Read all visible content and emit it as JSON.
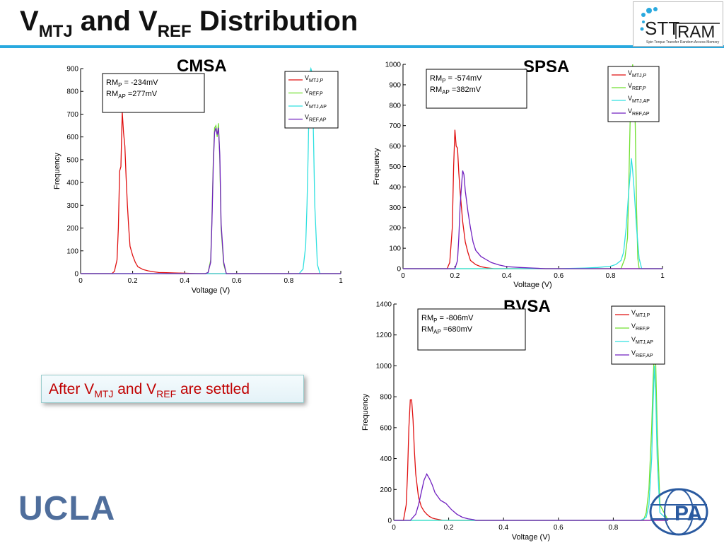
{
  "slide": {
    "title_v": "V",
    "title_mtj": "MTJ",
    "title_and": " and V",
    "title_ref": "REF",
    "title_tail": " Distribution",
    "callout_pre": "After V",
    "callout_mtj": "MTJ",
    "callout_mid": " and V",
    "callout_ref": "REF",
    "callout_post": " are settled",
    "ucla_logo": "UCLA",
    "sttram_logo_part1": "STT",
    "sttram_logo_part2": "RAM",
    "sttram_logo_tagline": "Spin Torque Transfer Random Access Memory",
    "pa_logo": "PA"
  },
  "colors": {
    "title_rule": "#29a9df",
    "label_blue": "#1010d0",
    "label_red": "#e00000",
    "callout_text": "#c00000",
    "ucla_blue": "#4f6e9c",
    "series": [
      "#e01010",
      "#70e030",
      "#30e0e0",
      "#7020c0"
    ]
  },
  "chart_data": [
    {
      "id": "cmsa",
      "type": "line",
      "label": "CMSA",
      "xlabel": "Voltage (V)",
      "ylabel": "Frequency",
      "xlim": [
        0,
        1
      ],
      "ylim": [
        0,
        900
      ],
      "xticks": [
        0,
        0.2,
        0.4,
        0.6,
        0.8,
        1
      ],
      "xtick_labels": [
        "0",
        "0.2",
        "0.4",
        "0.6",
        "0.8",
        "1"
      ],
      "yticks": [
        0,
        100,
        200,
        300,
        400,
        500,
        600,
        700,
        800,
        900
      ],
      "ytick_labels": [
        "0",
        "100",
        "200",
        "300",
        "400",
        "500",
        "600",
        "700",
        "800",
        "900"
      ],
      "annotation": [
        {
          "base": "RM",
          "sub": "P",
          "value": " = -234mV"
        },
        {
          "base": "RM",
          "sub": "AP",
          "value": " =277mV"
        }
      ],
      "legend": [
        {
          "base": "V",
          "sub": "MTJ,P"
        },
        {
          "base": "V",
          "sub": "REF,P"
        },
        {
          "base": "V",
          "sub": "MTJ,AP"
        },
        {
          "base": "V",
          "sub": "REF,AP"
        }
      ],
      "series": [
        {
          "x": [
            0,
            0.12,
            0.13,
            0.14,
            0.145,
            0.15,
            0.155,
            0.16,
            0.165,
            0.17,
            0.175,
            0.18,
            0.185,
            0.19,
            0.2,
            0.21,
            0.22,
            0.24,
            0.26,
            0.28,
            0.3,
            0.33,
            0.36,
            0.4,
            0.45,
            1
          ],
          "y": [
            0,
            0,
            10,
            60,
            200,
            450,
            470,
            710,
            620,
            560,
            420,
            300,
            200,
            120,
            80,
            50,
            30,
            18,
            12,
            8,
            5,
            4,
            3,
            2,
            0,
            0
          ]
        },
        {
          "x": [
            0,
            0.48,
            0.49,
            0.5,
            0.505,
            0.51,
            0.515,
            0.52,
            0.525,
            0.53,
            0.535,
            0.54,
            0.55,
            0.56,
            1
          ],
          "y": [
            0,
            0,
            5,
            60,
            250,
            500,
            640,
            650,
            600,
            660,
            500,
            200,
            40,
            0,
            0
          ]
        },
        {
          "x": [
            0,
            0.84,
            0.855,
            0.865,
            0.87,
            0.875,
            0.88,
            0.885,
            0.89,
            0.895,
            0.9,
            0.91,
            0.92,
            1
          ],
          "y": [
            0,
            0,
            20,
            120,
            300,
            550,
            880,
            900,
            880,
            600,
            300,
            40,
            0,
            0
          ]
        },
        {
          "x": [
            0,
            0.48,
            0.49,
            0.5,
            0.505,
            0.51,
            0.515,
            0.52,
            0.525,
            0.53,
            0.535,
            0.54,
            0.55,
            0.56,
            1
          ],
          "y": [
            0,
            0,
            5,
            50,
            230,
            480,
            620,
            640,
            610,
            640,
            520,
            220,
            50,
            0,
            0
          ]
        }
      ]
    },
    {
      "id": "spsa",
      "type": "line",
      "label": "SPSA",
      "xlabel": "Voltage (V)",
      "ylabel": "Frequency",
      "xlim": [
        0,
        1
      ],
      "ylim": [
        0,
        1000
      ],
      "xticks": [
        0,
        0.2,
        0.4,
        0.6,
        0.8,
        1
      ],
      "xtick_labels": [
        "0",
        "0.2",
        "0.4",
        "0.6",
        "0.8",
        "1"
      ],
      "yticks": [
        0,
        100,
        200,
        300,
        400,
        500,
        600,
        700,
        800,
        900,
        1000
      ],
      "ytick_labels": [
        "0",
        "100",
        "200",
        "300",
        "400",
        "500",
        "600",
        "700",
        "800",
        "900",
        "1000"
      ],
      "annotation": [
        {
          "base": "RM",
          "sub": "P",
          "value": " = -574mV"
        },
        {
          "base": "RM",
          "sub": "AP",
          "value": " =382mV"
        }
      ],
      "legend": [
        {
          "base": "V",
          "sub": "MTJ,P"
        },
        {
          "base": "V",
          "sub": "REF,P"
        },
        {
          "base": "V",
          "sub": "MTJ,AP"
        },
        {
          "base": "V",
          "sub": "REF,AP"
        }
      ],
      "series": [
        {
          "x": [
            0,
            0.17,
            0.18,
            0.19,
            0.195,
            0.2,
            0.205,
            0.21,
            0.215,
            0.22,
            0.23,
            0.24,
            0.25,
            0.26,
            0.27,
            0.28,
            0.3,
            0.32,
            0.35,
            1
          ],
          "y": [
            0,
            0,
            30,
            200,
            500,
            680,
            600,
            590,
            470,
            380,
            230,
            130,
            80,
            40,
            30,
            20,
            10,
            5,
            0,
            0
          ]
        },
        {
          "x": [
            0,
            0.84,
            0.855,
            0.865,
            0.87,
            0.875,
            0.88,
            0.885,
            0.89,
            0.895,
            0.9,
            0.905,
            0.91,
            1
          ],
          "y": [
            0,
            0,
            50,
            150,
            400,
            700,
            900,
            1000,
            900,
            700,
            300,
            50,
            0,
            0
          ]
        },
        {
          "x": [
            0,
            0.6,
            0.7,
            0.75,
            0.8,
            0.82,
            0.84,
            0.85,
            0.86,
            0.87,
            0.875,
            0.88,
            0.885,
            0.89,
            0.9,
            0.91,
            0.92,
            1
          ],
          "y": [
            0,
            0,
            3,
            6,
            12,
            20,
            40,
            80,
            200,
            380,
            450,
            540,
            480,
            400,
            200,
            50,
            0,
            0
          ]
        },
        {
          "x": [
            0,
            0.2,
            0.21,
            0.215,
            0.22,
            0.225,
            0.23,
            0.235,
            0.24,
            0.25,
            0.26,
            0.27,
            0.28,
            0.3,
            0.32,
            0.34,
            0.37,
            0.4,
            0.45,
            0.5,
            0.55,
            1
          ],
          "y": [
            0,
            0,
            40,
            150,
            300,
            400,
            480,
            460,
            380,
            280,
            200,
            130,
            90,
            60,
            45,
            30,
            18,
            10,
            6,
            3,
            0,
            0
          ]
        }
      ]
    },
    {
      "id": "bvsa",
      "type": "line",
      "label": "BVSA",
      "xlabel": "Voltage (V)",
      "ylabel": "Frequency",
      "xlim": [
        0,
        1
      ],
      "ylim": [
        0,
        1400
      ],
      "xticks": [
        0,
        0.2,
        0.4,
        0.6,
        0.8
      ],
      "xtick_labels": [
        "0",
        "0.2",
        "0.4",
        "0.6",
        "0.8"
      ],
      "yticks": [
        0,
        200,
        400,
        600,
        800,
        1000,
        1200,
        1400
      ],
      "ytick_labels": [
        "0",
        "200",
        "400",
        "600",
        "800",
        "1000",
        "1200",
        "1400"
      ],
      "annotation": [
        {
          "base": "RM",
          "sub": "P",
          "value": " = -806mV"
        },
        {
          "base": "RM",
          "sub": "AP",
          "value": " =680mV"
        }
      ],
      "legend": [
        {
          "base": "V",
          "sub": "MTJ,P"
        },
        {
          "base": "V",
          "sub": "REF,P"
        },
        {
          "base": "V",
          "sub": "MTJ,AP"
        },
        {
          "base": "V",
          "sub": "REF,AP"
        }
      ],
      "series": [
        {
          "x": [
            0,
            0.035,
            0.045,
            0.05,
            0.055,
            0.06,
            0.065,
            0.07,
            0.075,
            0.08,
            0.09,
            0.1,
            0.11,
            0.12,
            0.13,
            0.14,
            0.15,
            0.18,
            1
          ],
          "y": [
            0,
            0,
            100,
            300,
            600,
            780,
            780,
            650,
            450,
            300,
            150,
            90,
            60,
            40,
            25,
            15,
            10,
            0,
            0
          ]
        },
        {
          "x": [
            0,
            0.91,
            0.92,
            0.93,
            0.94,
            0.945,
            0.95,
            0.955,
            0.96,
            0.97,
            1
          ],
          "y": [
            0,
            0,
            50,
            200,
            600,
            900,
            1100,
            1000,
            600,
            100,
            0
          ]
        },
        {
          "x": [
            0,
            0.9,
            0.92,
            0.93,
            0.94,
            0.945,
            0.95,
            0.955,
            0.96,
            0.97,
            1
          ],
          "y": [
            0,
            0,
            20,
            100,
            400,
            750,
            1000,
            800,
            400,
            50,
            0
          ]
        },
        {
          "x": [
            0,
            0.06,
            0.08,
            0.09,
            0.1,
            0.11,
            0.12,
            0.13,
            0.14,
            0.15,
            0.17,
            0.19,
            0.21,
            0.23,
            0.25,
            0.27,
            0.29,
            0.3,
            1
          ],
          "y": [
            0,
            0,
            40,
            100,
            180,
            260,
            300,
            270,
            230,
            180,
            130,
            110,
            70,
            40,
            20,
            10,
            5,
            0,
            0
          ]
        }
      ]
    }
  ]
}
